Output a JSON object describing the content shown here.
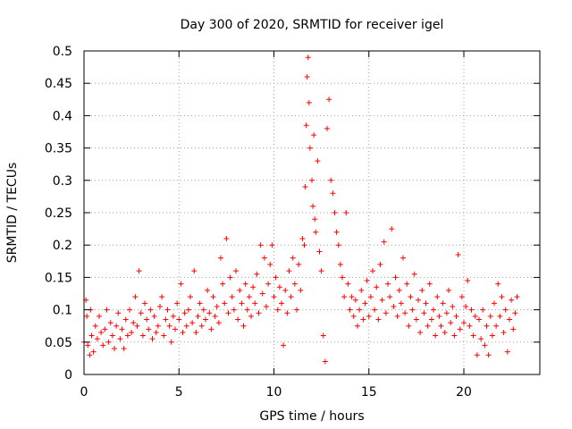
{
  "chart_data": {
    "type": "scatter",
    "title": "Day 300 of 2020, SRMTID for receiver igel",
    "xlabel": "GPS time / hours",
    "ylabel": "SRMTID / TECUs",
    "xlim": [
      0,
      24
    ],
    "ylim": [
      0,
      0.5
    ],
    "xticks": [
      0,
      5,
      10,
      15,
      20
    ],
    "yticks": [
      0,
      0.05,
      0.1,
      0.15,
      0.2,
      0.25,
      0.3,
      0.35,
      0.4,
      0.45,
      0.5
    ],
    "xtick_labels": [
      "0",
      "5",
      "10",
      "15",
      "20"
    ],
    "ytick_labels": [
      "0",
      "0.05",
      "0.1",
      "0.15",
      "0.2",
      "0.25",
      "0.3",
      "0.35",
      "0.4",
      "0.45",
      "0.5"
    ],
    "grid": true,
    "marker": "plus",
    "color": "#ff0000",
    "series": [
      {
        "name": "SRMTID",
        "points": [
          [
            0.0,
            0.05
          ],
          [
            0.1,
            0.115
          ],
          [
            0.15,
            0.09
          ],
          [
            0.2,
            0.045
          ],
          [
            0.3,
            0.03
          ],
          [
            0.35,
            0.1
          ],
          [
            0.4,
            0.06
          ],
          [
            0.5,
            0.035
          ],
          [
            0.6,
            0.075
          ],
          [
            0.7,
            0.055
          ],
          [
            0.8,
            0.09
          ],
          [
            0.9,
            0.065
          ],
          [
            1.0,
            0.045
          ],
          [
            1.1,
            0.07
          ],
          [
            1.2,
            0.1
          ],
          [
            1.3,
            0.05
          ],
          [
            1.4,
            0.08
          ],
          [
            1.5,
            0.06
          ],
          [
            1.6,
            0.04
          ],
          [
            1.7,
            0.075
          ],
          [
            1.8,
            0.095
          ],
          [
            1.9,
            0.055
          ],
          [
            2.0,
            0.07
          ],
          [
            2.1,
            0.04
          ],
          [
            2.2,
            0.085
          ],
          [
            2.3,
            0.06
          ],
          [
            2.4,
            0.1
          ],
          [
            2.5,
            0.065
          ],
          [
            2.6,
            0.08
          ],
          [
            2.7,
            0.12
          ],
          [
            2.8,
            0.075
          ],
          [
            2.9,
            0.16
          ],
          [
            3.0,
            0.095
          ],
          [
            3.1,
            0.06
          ],
          [
            3.2,
            0.11
          ],
          [
            3.3,
            0.085
          ],
          [
            3.4,
            0.07
          ],
          [
            3.5,
            0.1
          ],
          [
            3.6,
            0.055
          ],
          [
            3.7,
            0.09
          ],
          [
            3.8,
            0.065
          ],
          [
            3.9,
            0.075
          ],
          [
            4.0,
            0.105
          ],
          [
            4.1,
            0.12
          ],
          [
            4.2,
            0.06
          ],
          [
            4.3,
            0.085
          ],
          [
            4.4,
            0.1
          ],
          [
            4.5,
            0.075
          ],
          [
            4.6,
            0.05
          ],
          [
            4.7,
            0.09
          ],
          [
            4.8,
            0.07
          ],
          [
            4.9,
            0.11
          ],
          [
            5.0,
            0.085
          ],
          [
            5.1,
            0.14
          ],
          [
            5.2,
            0.065
          ],
          [
            5.3,
            0.095
          ],
          [
            5.4,
            0.075
          ],
          [
            5.5,
            0.1
          ],
          [
            5.6,
            0.12
          ],
          [
            5.7,
            0.08
          ],
          [
            5.8,
            0.16
          ],
          [
            5.9,
            0.065
          ],
          [
            6.0,
            0.09
          ],
          [
            6.1,
            0.11
          ],
          [
            6.2,
            0.075
          ],
          [
            6.3,
            0.1
          ],
          [
            6.4,
            0.085
          ],
          [
            6.5,
            0.13
          ],
          [
            6.6,
            0.095
          ],
          [
            6.7,
            0.07
          ],
          [
            6.8,
            0.12
          ],
          [
            6.9,
            0.09
          ],
          [
            7.0,
            0.105
          ],
          [
            7.1,
            0.08
          ],
          [
            7.2,
            0.18
          ],
          [
            7.3,
            0.14
          ],
          [
            7.4,
            0.11
          ],
          [
            7.5,
            0.21
          ],
          [
            7.6,
            0.095
          ],
          [
            7.7,
            0.15
          ],
          [
            7.8,
            0.12
          ],
          [
            7.9,
            0.1
          ],
          [
            8.0,
            0.16
          ],
          [
            8.1,
            0.085
          ],
          [
            8.2,
            0.13
          ],
          [
            8.3,
            0.11
          ],
          [
            8.4,
            0.075
          ],
          [
            8.5,
            0.14
          ],
          [
            8.6,
            0.1
          ],
          [
            8.7,
            0.12
          ],
          [
            8.8,
            0.09
          ],
          [
            8.9,
            0.135
          ],
          [
            9.0,
            0.11
          ],
          [
            9.1,
            0.155
          ],
          [
            9.2,
            0.095
          ],
          [
            9.3,
            0.2
          ],
          [
            9.4,
            0.125
          ],
          [
            9.5,
            0.18
          ],
          [
            9.6,
            0.105
          ],
          [
            9.7,
            0.14
          ],
          [
            9.8,
            0.17
          ],
          [
            9.9,
            0.2
          ],
          [
            10.0,
            0.12
          ],
          [
            10.1,
            0.15
          ],
          [
            10.2,
            0.1
          ],
          [
            10.3,
            0.135
          ],
          [
            10.4,
            0.11
          ],
          [
            10.5,
            0.045
          ],
          [
            10.6,
            0.13
          ],
          [
            10.7,
            0.095
          ],
          [
            10.8,
            0.16
          ],
          [
            10.9,
            0.12
          ],
          [
            11.0,
            0.18
          ],
          [
            11.1,
            0.14
          ],
          [
            11.2,
            0.1
          ],
          [
            11.3,
            0.17
          ],
          [
            11.4,
            0.13
          ],
          [
            11.5,
            0.21
          ],
          [
            11.6,
            0.2
          ],
          [
            11.65,
            0.29
          ],
          [
            11.7,
            0.385
          ],
          [
            11.75,
            0.46
          ],
          [
            11.8,
            0.49
          ],
          [
            11.85,
            0.42
          ],
          [
            11.9,
            0.35
          ],
          [
            12.0,
            0.3
          ],
          [
            12.05,
            0.26
          ],
          [
            12.1,
            0.37
          ],
          [
            12.15,
            0.24
          ],
          [
            12.2,
            0.22
          ],
          [
            12.3,
            0.33
          ],
          [
            12.4,
            0.19
          ],
          [
            12.5,
            0.16
          ],
          [
            12.6,
            0.06
          ],
          [
            12.7,
            0.02
          ],
          [
            12.8,
            0.38
          ],
          [
            12.9,
            0.425
          ],
          [
            13.0,
            0.3
          ],
          [
            13.1,
            0.28
          ],
          [
            13.2,
            0.25
          ],
          [
            13.3,
            0.22
          ],
          [
            13.4,
            0.2
          ],
          [
            13.5,
            0.17
          ],
          [
            13.6,
            0.15
          ],
          [
            13.7,
            0.12
          ],
          [
            13.8,
            0.25
          ],
          [
            13.9,
            0.14
          ],
          [
            14.0,
            0.1
          ],
          [
            14.1,
            0.12
          ],
          [
            14.2,
            0.09
          ],
          [
            14.3,
            0.115
          ],
          [
            14.4,
            0.075
          ],
          [
            14.5,
            0.1
          ],
          [
            14.6,
            0.13
          ],
          [
            14.7,
            0.085
          ],
          [
            14.8,
            0.11
          ],
          [
            14.9,
            0.145
          ],
          [
            15.0,
            0.09
          ],
          [
            15.1,
            0.12
          ],
          [
            15.2,
            0.16
          ],
          [
            15.3,
            0.1
          ],
          [
            15.4,
            0.135
          ],
          [
            15.5,
            0.085
          ],
          [
            15.6,
            0.17
          ],
          [
            15.7,
            0.115
          ],
          [
            15.8,
            0.205
          ],
          [
            15.9,
            0.095
          ],
          [
            16.0,
            0.14
          ],
          [
            16.1,
            0.12
          ],
          [
            16.2,
            0.225
          ],
          [
            16.3,
            0.105
          ],
          [
            16.4,
            0.15
          ],
          [
            16.5,
            0.09
          ],
          [
            16.6,
            0.13
          ],
          [
            16.7,
            0.11
          ],
          [
            16.8,
            0.18
          ],
          [
            16.9,
            0.095
          ],
          [
            17.0,
            0.14
          ],
          [
            17.1,
            0.075
          ],
          [
            17.2,
            0.12
          ],
          [
            17.3,
            0.1
          ],
          [
            17.4,
            0.155
          ],
          [
            17.5,
            0.085
          ],
          [
            17.6,
            0.115
          ],
          [
            17.7,
            0.065
          ],
          [
            17.8,
            0.13
          ],
          [
            17.9,
            0.095
          ],
          [
            18.0,
            0.11
          ],
          [
            18.1,
            0.075
          ],
          [
            18.2,
            0.14
          ],
          [
            18.3,
            0.085
          ],
          [
            18.4,
            0.1
          ],
          [
            18.5,
            0.06
          ],
          [
            18.6,
            0.12
          ],
          [
            18.7,
            0.09
          ],
          [
            18.8,
            0.075
          ],
          [
            18.9,
            0.11
          ],
          [
            19.0,
            0.065
          ],
          [
            19.1,
            0.095
          ],
          [
            19.2,
            0.13
          ],
          [
            19.3,
            0.08
          ],
          [
            19.4,
            0.105
          ],
          [
            19.5,
            0.06
          ],
          [
            19.6,
            0.09
          ],
          [
            19.7,
            0.185
          ],
          [
            19.8,
            0.07
          ],
          [
            19.9,
            0.12
          ],
          [
            20.0,
            0.08
          ],
          [
            20.1,
            0.105
          ],
          [
            20.2,
            0.145
          ],
          [
            20.3,
            0.075
          ],
          [
            20.4,
            0.1
          ],
          [
            20.5,
            0.06
          ],
          [
            20.6,
            0.09
          ],
          [
            20.7,
            0.03
          ],
          [
            20.8,
            0.085
          ],
          [
            20.9,
            0.055
          ],
          [
            21.0,
            0.1
          ],
          [
            21.1,
            0.045
          ],
          [
            21.2,
            0.075
          ],
          [
            21.3,
            0.03
          ],
          [
            21.4,
            0.09
          ],
          [
            21.5,
            0.06
          ],
          [
            21.6,
            0.11
          ],
          [
            21.7,
            0.075
          ],
          [
            21.8,
            0.14
          ],
          [
            21.9,
            0.09
          ],
          [
            22.0,
            0.12
          ],
          [
            22.1,
            0.065
          ],
          [
            22.2,
            0.1
          ],
          [
            22.3,
            0.035
          ],
          [
            22.4,
            0.085
          ],
          [
            22.5,
            0.115
          ],
          [
            22.6,
            0.07
          ],
          [
            22.7,
            0.095
          ],
          [
            22.8,
            0.12
          ]
        ]
      }
    ]
  }
}
